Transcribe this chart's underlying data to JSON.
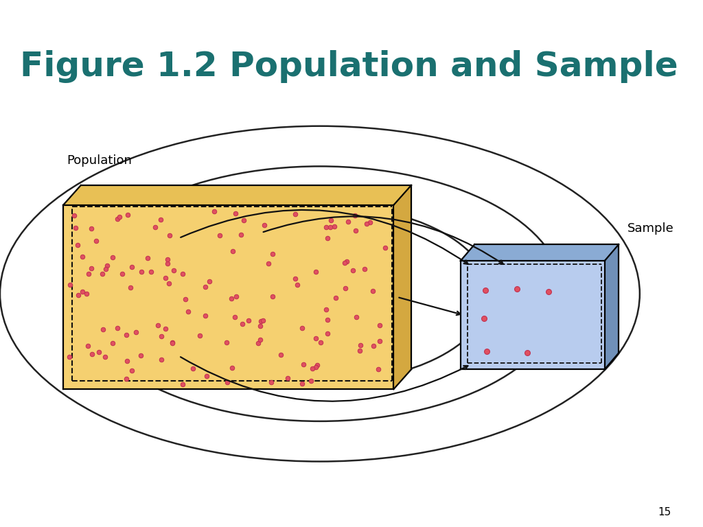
{
  "title": "Figure 1.2 Population and Sample",
  "title_color": "#1a7070",
  "title_fontsize": 36,
  "title_fontweight": "bold",
  "bg_color": "#ffffff",
  "header_color": "#2a8080",
  "footer_color": "#2a8080",
  "page_number": "15",
  "pop_label": "Population",
  "sample_label": "Sample",
  "pop_fill": "#f5d070",
  "pop_top_fill": "#e8c055",
  "pop_right_fill": "#d4a840",
  "pop_dots_color": "#e05060",
  "pop_dots_edge": "#c03050",
  "sample_fill": "#b8ccee",
  "sample_top_fill": "#8aabd4",
  "sample_right_fill": "#7090b8",
  "sample_dots_color": "#e05060",
  "sample_dots_edge": "#c03050",
  "arrow_color": "#111111",
  "ellipse_color": "#222222",
  "dashed_color": "#111111",
  "label_fontsize": 13,
  "page_num_fontsize": 11
}
